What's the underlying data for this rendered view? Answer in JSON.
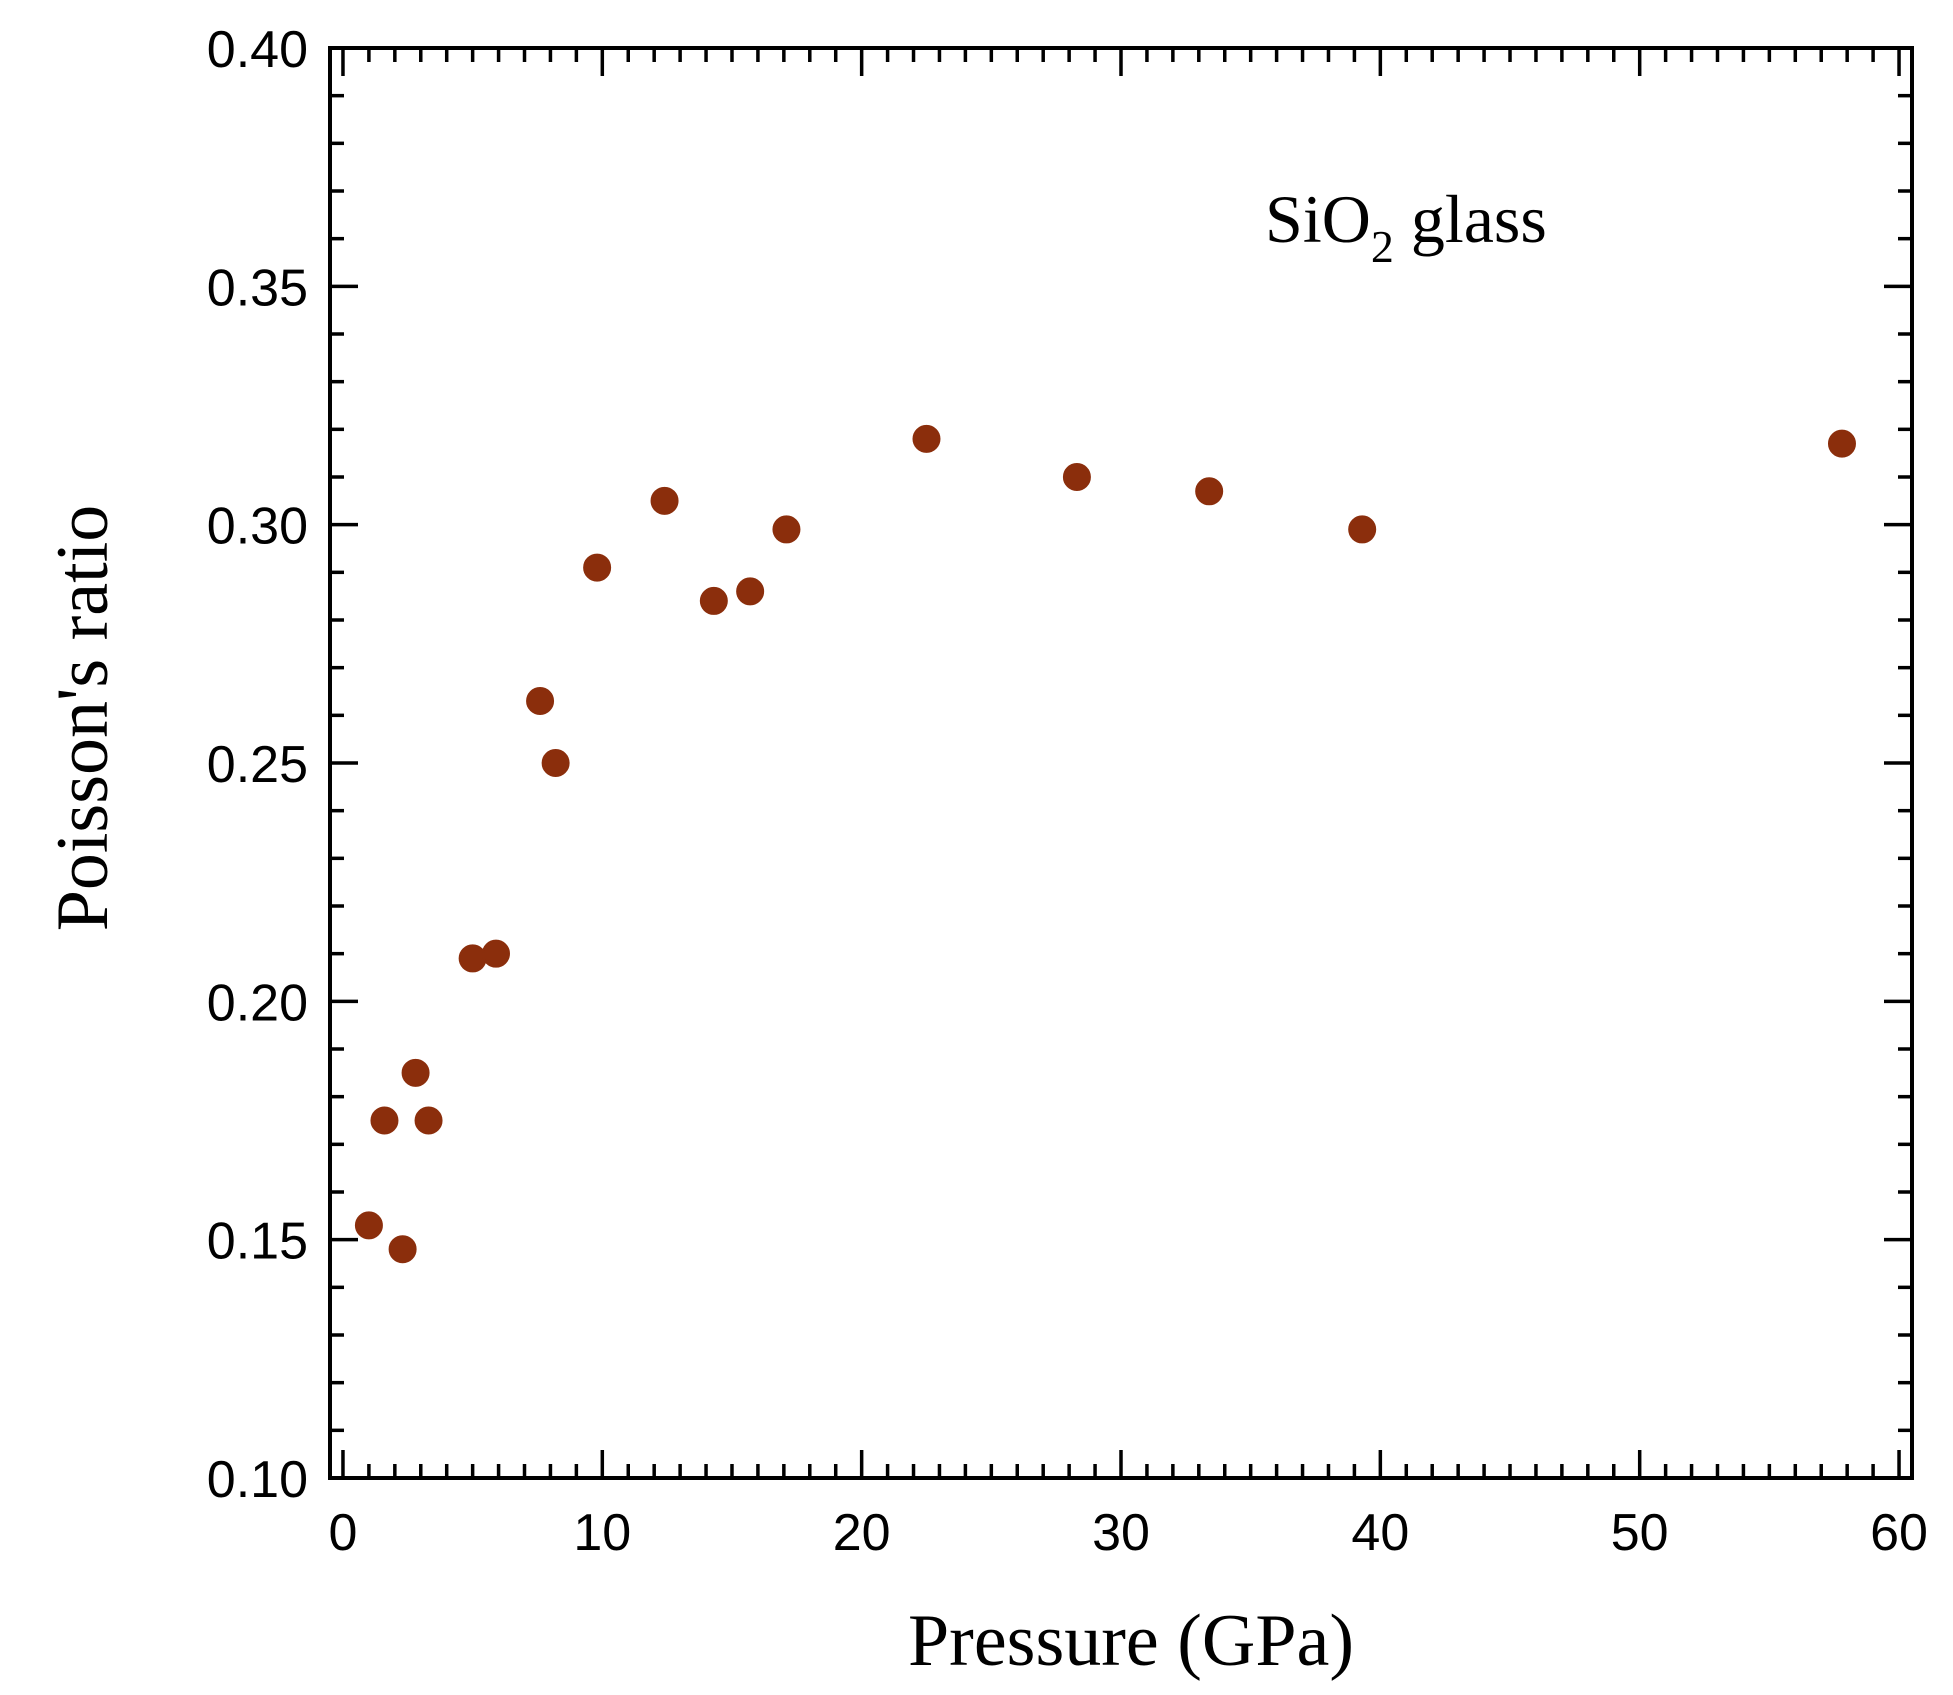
{
  "chart_data": {
    "type": "scatter",
    "title": "",
    "xlabel": "Pressure (GPa)",
    "ylabel": "Poisson's ratio",
    "xlim": [
      -0.5,
      60.5
    ],
    "ylim": [
      0.1,
      0.4
    ],
    "x_ticks": [
      0,
      10,
      20,
      30,
      40,
      50,
      60
    ],
    "y_ticks": [
      0.1,
      0.15,
      0.2,
      0.25,
      0.3,
      0.35,
      0.4
    ],
    "x_tick_labels": [
      "0",
      "10",
      "20",
      "30",
      "40",
      "50",
      "60"
    ],
    "y_tick_labels": [
      "0.10",
      "0.15",
      "0.20",
      "0.25",
      "0.30",
      "0.35",
      "0.40"
    ],
    "grid": false,
    "annotation": {
      "main": "SiO",
      "subscript": "2",
      "suffix": " glass"
    },
    "series": [
      {
        "name": "SiO2 glass",
        "color": "#8b2e0c",
        "marker": "circle",
        "points": [
          {
            "x": 1.0,
            "y": 0.153
          },
          {
            "x": 1.6,
            "y": 0.175
          },
          {
            "x": 2.3,
            "y": 0.148
          },
          {
            "x": 2.8,
            "y": 0.185
          },
          {
            "x": 3.3,
            "y": 0.175
          },
          {
            "x": 5.0,
            "y": 0.209
          },
          {
            "x": 5.9,
            "y": 0.21
          },
          {
            "x": 7.6,
            "y": 0.263
          },
          {
            "x": 8.2,
            "y": 0.25
          },
          {
            "x": 9.8,
            "y": 0.291
          },
          {
            "x": 12.4,
            "y": 0.305
          },
          {
            "x": 14.3,
            "y": 0.284
          },
          {
            "x": 15.7,
            "y": 0.286
          },
          {
            "x": 17.1,
            "y": 0.299
          },
          {
            "x": 22.5,
            "y": 0.318
          },
          {
            "x": 28.3,
            "y": 0.31
          },
          {
            "x": 33.4,
            "y": 0.307
          },
          {
            "x": 39.3,
            "y": 0.299
          },
          {
            "x": 57.8,
            "y": 0.317
          }
        ]
      }
    ]
  }
}
